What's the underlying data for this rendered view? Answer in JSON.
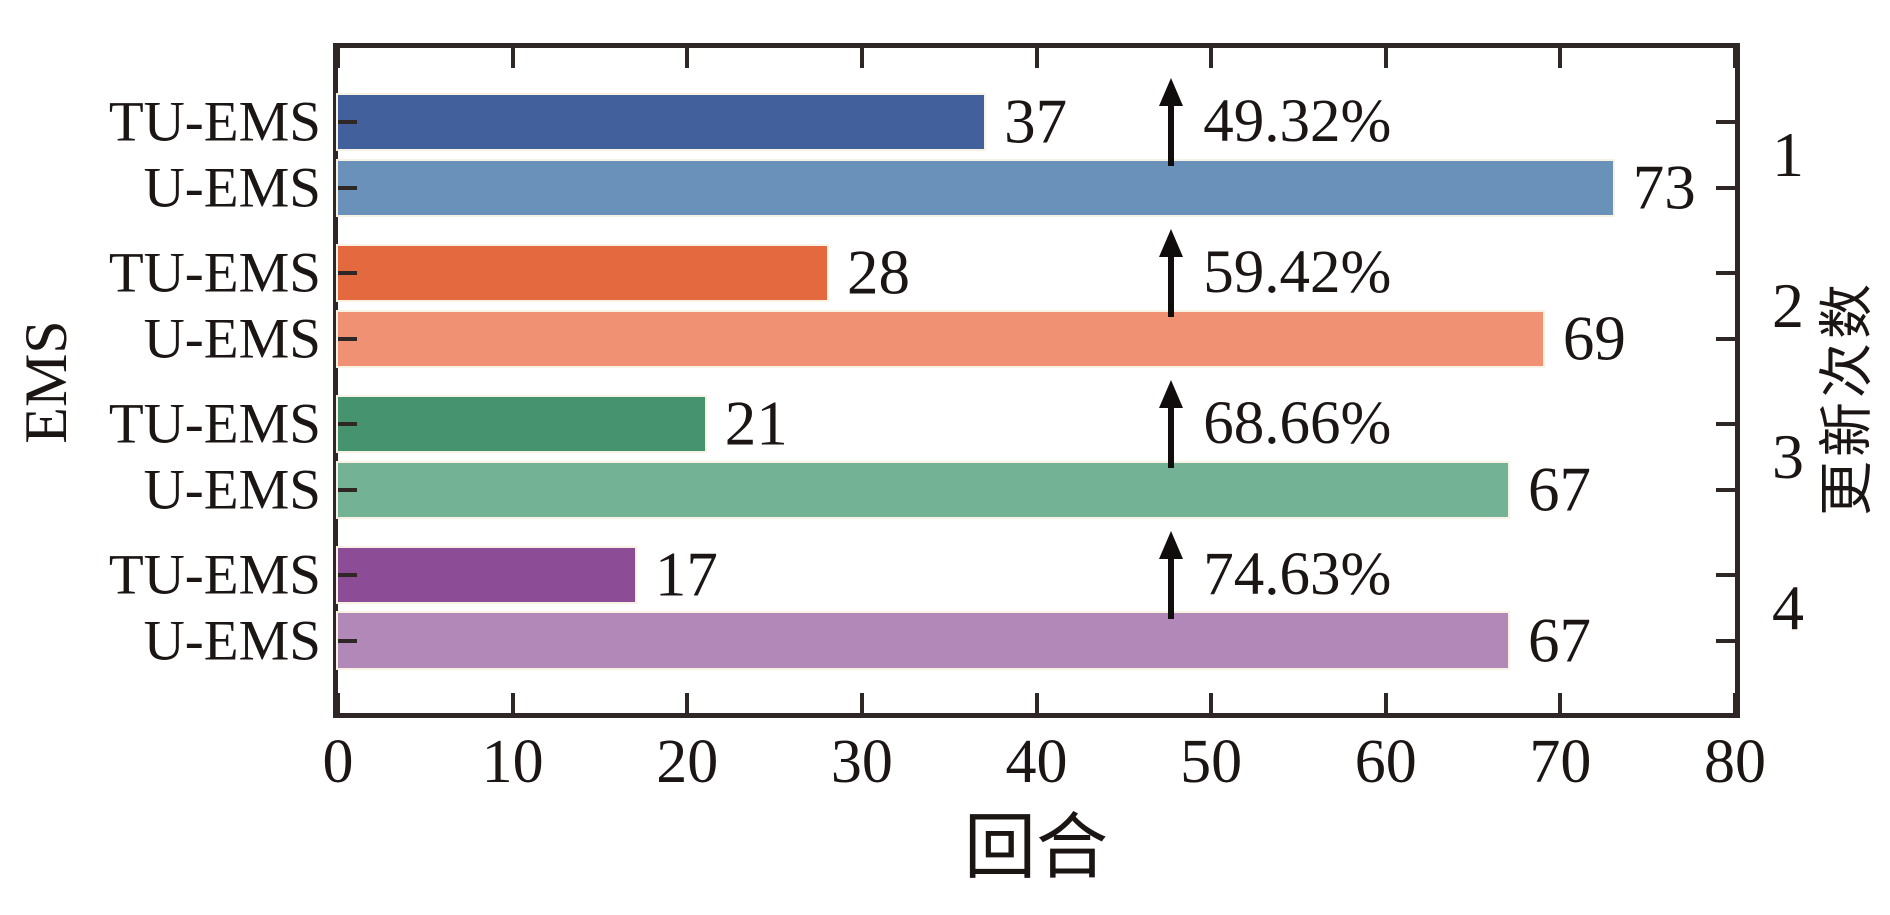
{
  "chart_data": {
    "type": "bar",
    "orientation": "horizontal",
    "xlabel": "回合",
    "ylabel_left": "EMS",
    "ylabel_right": "更新次数",
    "xlim": [
      0,
      80
    ],
    "x_ticks": [
      0,
      10,
      20,
      30,
      40,
      50,
      60,
      70,
      80
    ],
    "grid": false,
    "legend": "none",
    "series_names": [
      "TU-EMS",
      "U-EMS"
    ],
    "groups": [
      {
        "update_count": "1",
        "improvement": "49.32%",
        "bars": [
          {
            "label": "TU-EMS",
            "value": 37,
            "color": "#42609c"
          },
          {
            "label": "U-EMS",
            "value": 73,
            "color": "#6a91ba"
          }
        ]
      },
      {
        "update_count": "2",
        "improvement": "59.42%",
        "bars": [
          {
            "label": "TU-EMS",
            "value": 28,
            "color": "#e5693f"
          },
          {
            "label": "U-EMS",
            "value": 69,
            "color": "#f09173"
          }
        ]
      },
      {
        "update_count": "3",
        "improvement": "68.66%",
        "bars": [
          {
            "label": "TU-EMS",
            "value": 21,
            "color": "#46946f"
          },
          {
            "label": "U-EMS",
            "value": 67,
            "color": "#74b295"
          }
        ]
      },
      {
        "update_count": "4",
        "improvement": "74.63%",
        "bars": [
          {
            "label": "TU-EMS",
            "value": 17,
            "color": "#8d4c96"
          },
          {
            "label": "U-EMS",
            "value": 67,
            "color": "#b288b9"
          }
        ]
      }
    ],
    "annotation_icon": "up-arrow",
    "axis_color": "#2e2725",
    "text_color": "#1b1514",
    "arrow_color": "#100d0c"
  }
}
